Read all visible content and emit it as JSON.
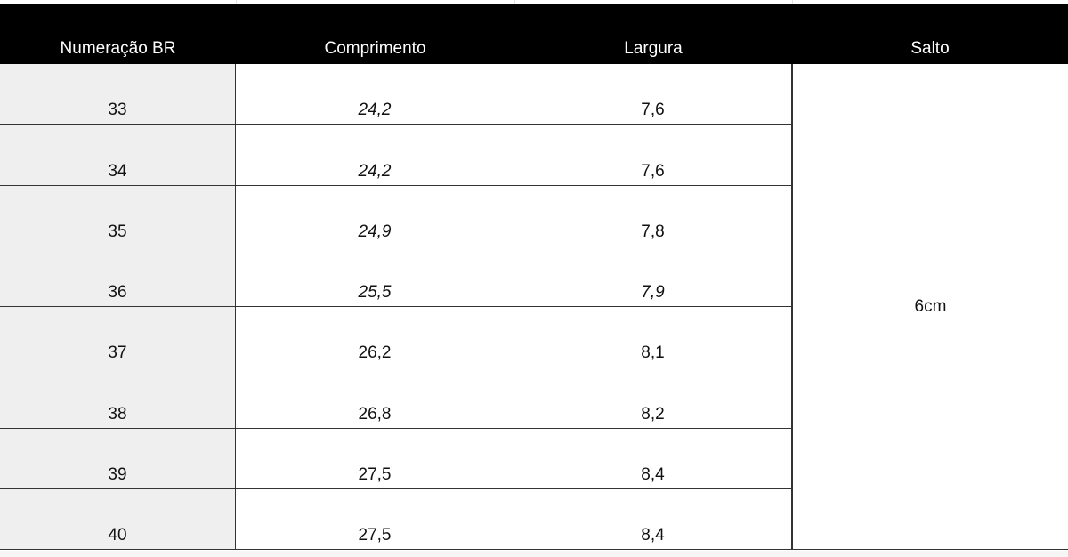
{
  "table": {
    "headers": [
      "Numeração BR",
      "Comprimento",
      "Largura",
      "Salto"
    ],
    "rows": [
      [
        "33",
        "24,2",
        "7,6"
      ],
      [
        "34",
        "24,2",
        "7,6"
      ],
      [
        "35",
        "24,9",
        "7,8"
      ],
      [
        "36",
        "25,5",
        "7,9"
      ],
      [
        "37",
        "26,2",
        "8,1"
      ],
      [
        "38",
        "26,8",
        "8,2"
      ],
      [
        "39",
        "27,5",
        "8,4"
      ],
      [
        "40",
        "27,5",
        "8,4"
      ]
    ],
    "salto": "6cm"
  }
}
